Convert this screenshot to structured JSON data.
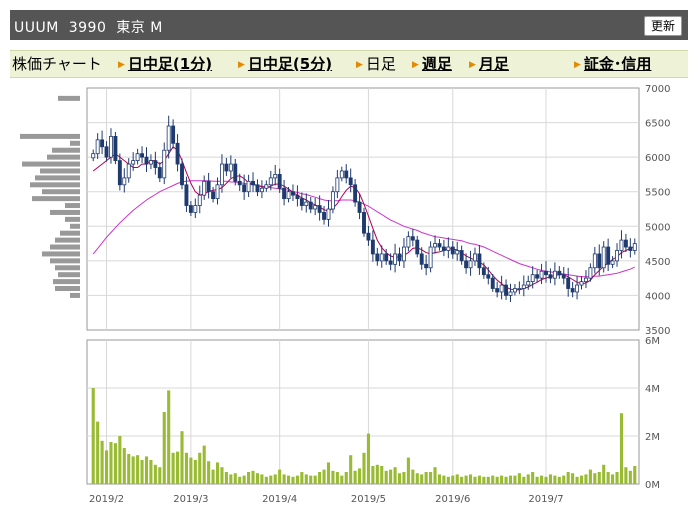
{
  "header": {
    "title": "UUUM  3990  東京 M",
    "refresh_label": "更新"
  },
  "tabs": [
    {
      "label": "株価チャート",
      "link": false,
      "marker": false
    },
    {
      "label": "日中足(1分)",
      "link": true,
      "marker": true
    },
    {
      "label": "日中足(5分)",
      "link": true,
      "marker": true
    },
    {
      "label": "日足",
      "link": false,
      "marker": true
    },
    {
      "label": "週足",
      "link": true,
      "marker": true
    },
    {
      "label": "月足",
      "link": true,
      "marker": true
    },
    {
      "label": "証金･信用",
      "link": true,
      "marker": true
    }
  ],
  "colors": {
    "candle": "#1f3a6e",
    "ma_short": "#b0005a",
    "ma_long": "#cc33cc",
    "volume": "#99bb33",
    "profile": "#999999",
    "header_bg": "#555555",
    "tab_bg": "#eef3d8",
    "tab_marker": "#e38a00"
  },
  "chart_data": {
    "type": "candlestick",
    "price_axis": {
      "ticks": [
        "7000",
        "6500",
        "6000",
        "5500",
        "5000",
        "4500",
        "4000",
        "3500"
      ],
      "ylim": [
        3500,
        7000
      ]
    },
    "volume_axis": {
      "ticks": [
        "6M",
        "4M",
        "2M",
        "0M"
      ],
      "ylim": [
        0,
        6000000
      ]
    },
    "x_labels": [
      "2019/2",
      "2019/3",
      "2019/4",
      "2019/5",
      "2019/6",
      "2019/7"
    ],
    "close": [
      6050,
      6250,
      6150,
      6000,
      6300,
      5950,
      5600,
      5700,
      5900,
      5950,
      6050,
      6000,
      5900,
      5950,
      5850,
      5700,
      6100,
      6450,
      6200,
      5900,
      5600,
      5300,
      5200,
      5300,
      5450,
      5650,
      5500,
      5400,
      5600,
      5900,
      5800,
      5900,
      5650,
      5600,
      5500,
      5650,
      5600,
      5500,
      5550,
      5600,
      5700,
      5750,
      5550,
      5400,
      5500,
      5450,
      5400,
      5300,
      5350,
      5250,
      5300,
      5200,
      5100,
      5250,
      5500,
      5700,
      5800,
      5700,
      5600,
      5350,
      5200,
      4900,
      4800,
      4600,
      4500,
      4600,
      4500,
      4450,
      4600,
      4500,
      4700,
      4850,
      4800,
      4600,
      4450,
      4400,
      4700,
      4750,
      4700,
      4650,
      4700,
      4600,
      4650,
      4500,
      4400,
      4500,
      4600,
      4400,
      4300,
      4250,
      4100,
      4050,
      4150,
      4000,
      4050,
      4100,
      4100,
      4150,
      4200,
      4300,
      4250,
      4350,
      4300,
      4250,
      4350,
      4300,
      4250,
      4100,
      4050,
      4150,
      4200,
      4250,
      4400,
      4600,
      4400,
      4700,
      4450,
      4500,
      4650,
      4800,
      4700,
      4650,
      4750
    ],
    "volume": [
      4000000,
      2600000,
      1800000,
      1400000,
      1750000,
      1700000,
      2000000,
      1500000,
      1250000,
      1150000,
      1200000,
      1000000,
      1150000,
      1000000,
      800000,
      700000,
      3000000,
      3900000,
      1300000,
      1350000,
      2200000,
      1300000,
      1100000,
      1000000,
      1300000,
      1600000,
      950000,
      600000,
      900000,
      700000,
      500000,
      400000,
      450000,
      300000,
      350000,
      500000,
      550000,
      450000,
      400000,
      300000,
      350000,
      400000,
      600000,
      400000,
      350000,
      300000,
      350000,
      500000,
      400000,
      350000,
      350000,
      500000,
      600000,
      900000,
      550000,
      500000,
      350000,
      500000,
      1200000,
      550000,
      650000,
      1300000,
      2100000,
      750000,
      800000,
      750000,
      550000,
      600000,
      700000,
      450000,
      500000,
      1100000,
      600000,
      450000,
      400000,
      500000,
      500000,
      700000,
      400000,
      350000,
      300000,
      350000,
      400000,
      300000,
      350000,
      400000,
      300000,
      350000,
      300000,
      300000,
      350000,
      300000,
      350000,
      300000,
      350000,
      350000,
      450000,
      300000,
      400000,
      500000,
      300000,
      350000,
      300000,
      400000,
      350000,
      300000,
      350000,
      500000,
      450000,
      300000,
      350000,
      400000,
      600000,
      450000,
      500000,
      800000,
      500000,
      400000,
      500000,
      2950000,
      700000,
      550000,
      750000
    ],
    "ma_short": [
      5800,
      5850,
      5900,
      5950,
      6000,
      6050,
      6000,
      5950,
      5900,
      5850,
      5850,
      5900,
      5900,
      5950,
      5950,
      5900,
      5950,
      6050,
      6150,
      6100,
      5950,
      5780,
      5620,
      5500,
      5450,
      5470,
      5500,
      5520,
      5530,
      5560,
      5620,
      5690,
      5720,
      5730,
      5690,
      5630,
      5610,
      5590,
      5570,
      5560,
      5580,
      5610,
      5610,
      5580,
      5540,
      5490,
      5450,
      5410,
      5380,
      5340,
      5310,
      5280,
      5240,
      5220,
      5260,
      5330,
      5430,
      5520,
      5580,
      5560,
      5470,
      5320,
      5150,
      4970,
      4800,
      4690,
      4620,
      4570,
      4550,
      4560,
      4580,
      4620,
      4680,
      4690,
      4660,
      4620,
      4600,
      4620,
      4630,
      4650,
      4680,
      4670,
      4660,
      4620,
      4570,
      4540,
      4510,
      4480,
      4440,
      4370,
      4290,
      4220,
      4170,
      4120,
      4090,
      4080,
      4080,
      4100,
      4120,
      4160,
      4190,
      4230,
      4250,
      4270,
      4290,
      4300,
      4300,
      4270,
      4230,
      4190,
      4170,
      4180,
      4220,
      4300,
      4360,
      4420,
      4470,
      4520,
      4560,
      4620,
      4650,
      4680,
      4710
    ],
    "ma_long": [
      4600,
      4680,
      4760,
      4840,
      4910,
      4980,
      5050,
      5110,
      5170,
      5230,
      5280,
      5330,
      5380,
      5420,
      5460,
      5500,
      5530,
      5560,
      5590,
      5620,
      5640,
      5650,
      5660,
      5660,
      5660,
      5660,
      5660,
      5650,
      5650,
      5650,
      5650,
      5640,
      5640,
      5630,
      5620,
      5610,
      5600,
      5590,
      5580,
      5570,
      5560,
      5550,
      5540,
      5530,
      5520,
      5500,
      5490,
      5470,
      5460,
      5440,
      5420,
      5400,
      5380,
      5370,
      5370,
      5370,
      5380,
      5380,
      5380,
      5370,
      5350,
      5320,
      5290,
      5250,
      5210,
      5170,
      5130,
      5090,
      5060,
      5030,
      5000,
      4980,
      4960,
      4940,
      4910,
      4890,
      4870,
      4850,
      4840,
      4830,
      4820,
      4810,
      4800,
      4790,
      4770,
      4750,
      4740,
      4720,
      4700,
      4670,
      4640,
      4610,
      4580,
      4550,
      4520,
      4490,
      4460,
      4440,
      4420,
      4400,
      4380,
      4360,
      4350,
      4340,
      4330,
      4320,
      4310,
      4300,
      4290,
      4280,
      4270,
      4270,
      4270,
      4280,
      4280,
      4290,
      4300,
      4310,
      4320,
      4340,
      4360,
      4380,
      4410
    ],
    "price_profile": [
      {
        "price": 6850,
        "volume": 22
      },
      {
        "price": 6300,
        "volume": 60
      },
      {
        "price": 6200,
        "volume": 10
      },
      {
        "price": 6100,
        "volume": 28
      },
      {
        "price": 6000,
        "volume": 33
      },
      {
        "price": 5900,
        "volume": 58
      },
      {
        "price": 5800,
        "volume": 40
      },
      {
        "price": 5700,
        "volume": 45
      },
      {
        "price": 5600,
        "volume": 50
      },
      {
        "price": 5500,
        "volume": 38
      },
      {
        "price": 5400,
        "volume": 48
      },
      {
        "price": 5300,
        "volume": 15
      },
      {
        "price": 5200,
        "volume": 30
      },
      {
        "price": 5100,
        "volume": 15
      },
      {
        "price": 5000,
        "volume": 10
      },
      {
        "price": 4900,
        "volume": 20
      },
      {
        "price": 4800,
        "volume": 25
      },
      {
        "price": 4700,
        "volume": 30
      },
      {
        "price": 4600,
        "volume": 38
      },
      {
        "price": 4500,
        "volume": 30
      },
      {
        "price": 4400,
        "volume": 25
      },
      {
        "price": 4300,
        "volume": 22
      },
      {
        "price": 4200,
        "volume": 27
      },
      {
        "price": 4100,
        "volume": 25
      },
      {
        "price": 4000,
        "volume": 10
      }
    ]
  }
}
